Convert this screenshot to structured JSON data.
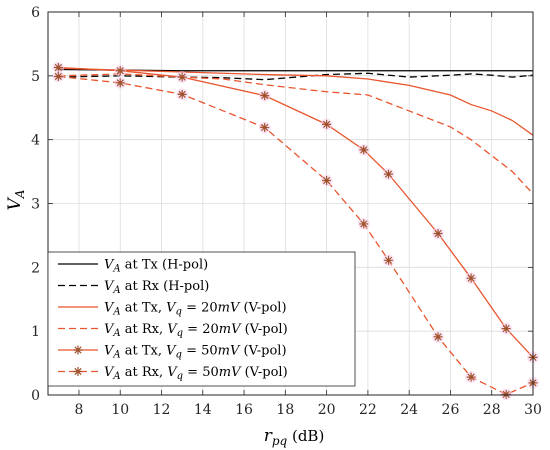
{
  "chart_data": {
    "type": "line",
    "xlabel_var": "r",
    "xlabel_sub": "pq",
    "xlabel_unit": " (dB)",
    "ylabel_var": "V",
    "ylabel_sub": "A",
    "xlim": [
      6.5,
      30
    ],
    "ylim": [
      0,
      6
    ],
    "xticks": [
      8,
      10,
      12,
      14,
      16,
      18,
      20,
      22,
      24,
      26,
      28,
      30
    ],
    "yticks": [
      0,
      1,
      2,
      3,
      4,
      5,
      6
    ],
    "grid": true,
    "legend_position": "bottom-left",
    "series": [
      {
        "name": "VA at Tx (H-pol)",
        "legend": {
          "v": "V",
          "sub": "A",
          "rest": " at Tx (H-pol)",
          "q": "",
          "val": "",
          "mv": "",
          "tail": ""
        },
        "color": "#000000",
        "dash": "solid",
        "marker": "none",
        "x": [
          7,
          10,
          13,
          17,
          20,
          22,
          25,
          27,
          29,
          30
        ],
        "y": [
          5.1,
          5.09,
          5.08,
          5.08,
          5.08,
          5.08,
          5.08,
          5.08,
          5.08,
          5.08
        ]
      },
      {
        "name": "VA at Rx (H-pol)",
        "legend": {
          "v": "V",
          "sub": "A",
          "rest": " at Rx (H-pol)",
          "q": "",
          "val": "",
          "mv": "",
          "tail": ""
        },
        "color": "#000000",
        "dash": "dashed",
        "marker": "none",
        "x": [
          7,
          10,
          13,
          15,
          17,
          20,
          22,
          24,
          26,
          27,
          28,
          29,
          30
        ],
        "y": [
          4.98,
          5.0,
          4.98,
          4.97,
          4.94,
          5.02,
          5.04,
          4.98,
          5.01,
          5.03,
          5.01,
          4.98,
          5.01
        ]
      },
      {
        "name": "VA at Tx, Vq = 20mV (V-pol)",
        "legend": {
          "v": "V",
          "sub": "A",
          "rest": " at Tx, ",
          "q": "V",
          "val": " = 20",
          "mv": "mV",
          "tail": " (V-pol)"
        },
        "color": "#e8552e",
        "dash": "solid",
        "marker": "none",
        "x": [
          7,
          10,
          13,
          17,
          20,
          22,
          24,
          26,
          27,
          28,
          29,
          30
        ],
        "y": [
          5.12,
          5.09,
          5.06,
          5.02,
          5.0,
          4.95,
          4.85,
          4.7,
          4.55,
          4.45,
          4.3,
          4.07
        ]
      },
      {
        "name": "VA at Rx, Vq = 20mV (V-pol)",
        "legend": {
          "v": "V",
          "sub": "A",
          "rest": " at Rx, ",
          "q": "V",
          "val": " = 20",
          "mv": "mV",
          "tail": " (V-pol)"
        },
        "color": "#e8552e",
        "dash": "dashed",
        "marker": "none",
        "x": [
          7,
          10,
          13,
          15,
          17,
          20,
          22,
          24,
          26,
          27,
          28,
          29,
          30
        ],
        "y": [
          5.0,
          5.03,
          4.98,
          4.95,
          4.86,
          4.75,
          4.7,
          4.45,
          4.2,
          4.0,
          3.75,
          3.5,
          3.15
        ]
      },
      {
        "name": "VA at Tx, Vq = 50mV (V-pol)",
        "legend": {
          "v": "V",
          "sub": "A",
          "rest": " at Tx, ",
          "q": "V",
          "val": " = 50",
          "mv": "mV",
          "tail": " (V-pol)"
        },
        "color": "#e8552e",
        "dash": "solid",
        "marker": "star",
        "x": [
          7,
          10,
          13,
          17,
          20,
          21.8,
          23,
          25.4,
          27,
          28.7,
          30
        ],
        "y": [
          5.13,
          5.08,
          4.98,
          4.69,
          4.24,
          3.84,
          3.46,
          2.53,
          1.83,
          1.04,
          0.59
        ]
      },
      {
        "name": "VA at Rx, Vq = 50mV (V-pol)",
        "legend": {
          "v": "V",
          "sub": "A",
          "rest": " at Rx, ",
          "q": "V",
          "val": " = 50",
          "mv": "mV",
          "tail": " (V-pol)"
        },
        "color": "#e8552e",
        "dash": "dashed",
        "marker": "star",
        "x": [
          7,
          10,
          13,
          17,
          20,
          21.8,
          23,
          25.4,
          27,
          28.7,
          30
        ],
        "y": [
          4.99,
          4.89,
          4.71,
          4.19,
          3.36,
          2.68,
          2.11,
          0.91,
          0.28,
          0.01,
          0.19
        ]
      }
    ]
  }
}
